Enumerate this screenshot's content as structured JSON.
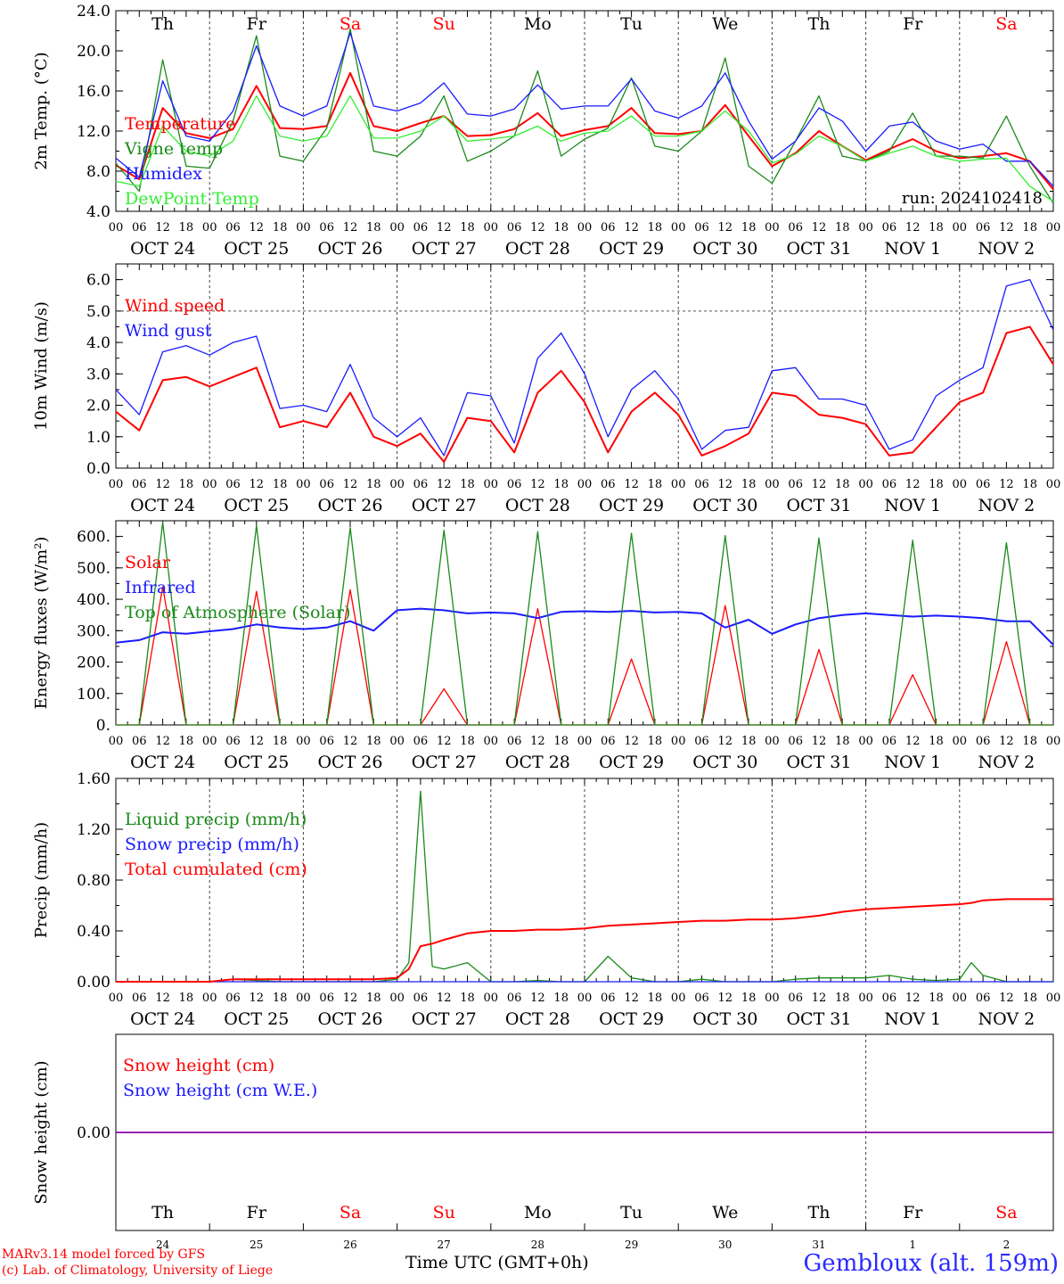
{
  "run_label": "run: 2024102418",
  "days": [
    "Th",
    "Fr",
    "Sa",
    "Su",
    "Mo",
    "Tu",
    "We",
    "Th",
    "Fr",
    "Sa"
  ],
  "weekend": [
    false,
    false,
    true,
    true,
    false,
    false,
    false,
    false,
    false,
    true
  ],
  "dates": [
    "OCT 24",
    "OCT 25",
    "OCT 26",
    "OCT 27",
    "OCT 28",
    "OCT 29",
    "OCT 30",
    "OCT 31",
    "NOV  1",
    "NOV  2"
  ],
  "bottom_dates": [
    "24",
    "25",
    "26",
    "27",
    "28",
    "29",
    "30",
    "31",
    "1",
    "2"
  ],
  "hour_labels": [
    "00",
    "06",
    "12",
    "18"
  ],
  "footer": {
    "model": "MARv3.14 model forced by GFS",
    "lab": "(c) Lab. of Climatology, University of Liege",
    "axis": "Time UTC (GMT+0h)",
    "station": "Gembloux (alt. 159m)"
  },
  "colors": {
    "red": "#ff0000",
    "green": "#1a8a1a",
    "blue": "#1a1aff",
    "lightgreen": "#33ee33",
    "purple": "#8800aa"
  },
  "chart_data": [
    {
      "type": "line",
      "ylabel": "2m Temp. (°C)",
      "ylim": [
        4,
        24
      ],
      "yticks": [
        "4.0",
        "8.0",
        "12.0",
        "16.0",
        "20.0",
        "24.0"
      ],
      "x_hours": [
        0,
        6,
        12,
        18,
        24,
        30,
        36,
        42,
        48,
        54,
        60,
        66,
        72,
        78,
        84,
        90,
        96,
        102,
        108,
        114,
        120,
        126,
        132,
        138,
        144,
        150,
        156,
        162,
        168,
        174,
        180,
        186,
        192,
        198,
        204,
        210,
        216,
        222,
        228,
        234,
        240
      ],
      "series": [
        {
          "name": "Temperature",
          "color": "red",
          "values": [
            8.6,
            7.2,
            14.3,
            11.8,
            11.3,
            12.2,
            16.5,
            12.3,
            12.2,
            12.5,
            17.8,
            12.5,
            12.0,
            12.8,
            13.5,
            11.5,
            11.6,
            12.2,
            13.8,
            11.5,
            12.1,
            12.5,
            14.3,
            11.8,
            11.7,
            12.0,
            14.6,
            11.5,
            8.5,
            9.8,
            12.0,
            10.5,
            9.1,
            10.2,
            11.2,
            10.0,
            9.3,
            9.5,
            9.8,
            9.0,
            6.2
          ]
        },
        {
          "name": "Vigne temp",
          "color": "green",
          "values": [
            8.8,
            6.0,
            19.1,
            8.5,
            8.3,
            13.0,
            21.5,
            9.5,
            9.0,
            12.3,
            22.2,
            10.0,
            9.5,
            11.5,
            15.5,
            9.0,
            10.0,
            11.5,
            18.0,
            9.5,
            11.2,
            12.3,
            17.3,
            10.5,
            10.0,
            12.0,
            19.3,
            8.5,
            6.8,
            11.0,
            15.5,
            9.5,
            9.0,
            10.0,
            13.8,
            9.5,
            9.5,
            9.3,
            13.5,
            8.5,
            4.8
          ]
        },
        {
          "name": "Humidex",
          "color": "blue",
          "values": [
            9.3,
            7.4,
            17.0,
            11.5,
            11.0,
            14.0,
            20.5,
            14.5,
            13.5,
            14.5,
            21.8,
            14.5,
            14.0,
            14.8,
            16.8,
            13.7,
            13.5,
            14.2,
            16.6,
            14.2,
            14.5,
            14.5,
            17.2,
            14.0,
            13.3,
            14.5,
            17.8,
            13.0,
            9.2,
            11.0,
            14.3,
            13.0,
            10.0,
            12.5,
            12.9,
            11.0,
            10.2,
            10.7,
            9.0,
            9.0,
            6.5
          ]
        },
        {
          "name": "DewPoint Temp",
          "color": "lightgreen",
          "values": [
            7.0,
            6.5,
            12.5,
            10.0,
            9.5,
            11.0,
            15.5,
            11.5,
            11.0,
            11.5,
            15.5,
            11.3,
            11.3,
            12.0,
            13.5,
            11.0,
            11.2,
            11.5,
            12.5,
            11.0,
            11.8,
            12.0,
            13.5,
            11.5,
            11.5,
            12.0,
            14.0,
            12.0,
            8.8,
            9.7,
            11.5,
            10.5,
            9.0,
            9.8,
            10.5,
            9.5,
            9.0,
            9.2,
            9.3,
            6.5,
            5.0
          ]
        }
      ]
    },
    {
      "type": "line",
      "ylabel": "10m Wind (m/s)",
      "ylim": [
        0,
        6.5
      ],
      "yticks": [
        "0.0",
        "1.0",
        "2.0",
        "3.0",
        "4.0",
        "5.0",
        "6.0"
      ],
      "ref_line": 5,
      "x_hours": [
        0,
        6,
        12,
        18,
        24,
        30,
        36,
        42,
        48,
        54,
        60,
        66,
        72,
        78,
        84,
        90,
        96,
        102,
        108,
        114,
        120,
        126,
        132,
        138,
        144,
        150,
        156,
        162,
        168,
        174,
        180,
        186,
        192,
        198,
        204,
        210,
        216,
        222,
        228,
        234,
        240
      ],
      "series": [
        {
          "name": "Wind speed",
          "color": "red",
          "values": [
            1.8,
            1.2,
            2.8,
            2.9,
            2.6,
            2.9,
            3.2,
            1.3,
            1.5,
            1.3,
            2.4,
            1.0,
            0.7,
            1.1,
            0.2,
            1.6,
            1.5,
            0.5,
            2.4,
            3.1,
            2.1,
            0.5,
            1.8,
            2.4,
            1.7,
            0.4,
            0.7,
            1.1,
            2.4,
            2.3,
            1.7,
            1.6,
            1.4,
            0.4,
            0.5,
            1.3,
            2.1,
            2.4,
            4.3,
            4.5,
            3.3
          ]
        },
        {
          "name": "Wind gust",
          "color": "blue",
          "values": [
            2.5,
            1.7,
            3.7,
            3.9,
            3.6,
            4.0,
            4.2,
            1.9,
            2.0,
            1.8,
            3.3,
            1.6,
            1.0,
            1.6,
            0.4,
            2.4,
            2.3,
            0.8,
            3.5,
            4.3,
            3.0,
            1.0,
            2.5,
            3.1,
            2.2,
            0.6,
            1.2,
            1.3,
            3.1,
            3.2,
            2.2,
            2.2,
            2.0,
            0.6,
            0.9,
            2.3,
            2.8,
            3.2,
            5.8,
            6.0,
            4.4
          ]
        }
      ]
    },
    {
      "type": "line",
      "ylabel": "Energy fluxes (W/m²)",
      "ylim": [
        0,
        650
      ],
      "yticks": [
        "0.",
        "100.",
        "200.",
        "300.",
        "400.",
        "500.",
        "600."
      ],
      "x_hours": [
        0,
        6,
        12,
        18,
        24,
        30,
        36,
        42,
        48,
        54,
        60,
        66,
        72,
        78,
        84,
        90,
        96,
        102,
        108,
        114,
        120,
        126,
        132,
        138,
        144,
        150,
        156,
        162,
        168,
        174,
        180,
        186,
        192,
        198,
        204,
        210,
        216,
        222,
        228,
        234,
        240
      ],
      "series": [
        {
          "name": "Solar",
          "color": "red",
          "values": [
            0,
            0,
            440,
            0,
            0,
            0,
            425,
            0,
            0,
            0,
            430,
            0,
            0,
            0,
            115,
            0,
            0,
            0,
            370,
            0,
            0,
            0,
            210,
            0,
            0,
            0,
            380,
            0,
            0,
            0,
            240,
            0,
            0,
            0,
            160,
            0,
            0,
            0,
            265,
            0,
            0
          ]
        },
        {
          "name": "Infrared",
          "color": "blue",
          "values": [
            262,
            270,
            295,
            290,
            298,
            305,
            320,
            310,
            305,
            310,
            330,
            300,
            365,
            370,
            365,
            355,
            358,
            355,
            340,
            360,
            362,
            360,
            363,
            358,
            360,
            355,
            310,
            335,
            290,
            320,
            340,
            350,
            355,
            350,
            345,
            348,
            345,
            340,
            330,
            330,
            255
          ]
        },
        {
          "name": "Top of Atmosphere (Solar)",
          "color": "green",
          "values": [
            0,
            0,
            645,
            0,
            0,
            0,
            635,
            0,
            0,
            0,
            628,
            0,
            0,
            0,
            620,
            0,
            0,
            0,
            615,
            0,
            0,
            0,
            610,
            0,
            0,
            0,
            603,
            0,
            0,
            0,
            595,
            0,
            0,
            0,
            588,
            0,
            0,
            0,
            580,
            0,
            0
          ]
        }
      ]
    },
    {
      "type": "line",
      "ylabel": "Precip (mm/h)",
      "ylim": [
        0,
        1.6
      ],
      "yticks": [
        "0.00",
        "0.40",
        "0.80",
        "1.20",
        "1.60"
      ],
      "x_hours": [
        0,
        6,
        12,
        18,
        24,
        30,
        36,
        42,
        48,
        54,
        60,
        66,
        72,
        75,
        78,
        81,
        84,
        90,
        96,
        102,
        108,
        114,
        120,
        126,
        132,
        138,
        144,
        150,
        156,
        162,
        168,
        174,
        180,
        186,
        192,
        198,
        204,
        210,
        216,
        219,
        222,
        228,
        234,
        240
      ],
      "series": [
        {
          "name": "Liquid precip (mm/h)",
          "color": "green",
          "values": [
            0,
            0,
            0,
            0,
            0,
            0.02,
            0.01,
            0,
            0,
            0,
            0,
            0,
            0.02,
            0.15,
            1.5,
            0.12,
            0.1,
            0.15,
            0,
            0,
            0.01,
            0,
            0,
            0.2,
            0.03,
            0,
            0,
            0.02,
            0,
            0,
            0,
            0.02,
            0.03,
            0.03,
            0.03,
            0.05,
            0.02,
            0.01,
            0.02,
            0.15,
            0.05,
            0,
            0,
            0
          ]
        },
        {
          "name": "Snow precip (mm/h)",
          "color": "blue",
          "values": [
            0,
            0,
            0,
            0,
            0,
            0,
            0,
            0,
            0,
            0,
            0,
            0,
            0,
            0,
            0,
            0,
            0,
            0,
            0,
            0,
            0,
            0,
            0,
            0,
            0,
            0,
            0,
            0,
            0,
            0,
            0,
            0,
            0,
            0,
            0,
            0,
            0,
            0,
            0,
            0,
            0,
            0,
            0,
            0
          ]
        },
        {
          "name": "Total cumulated (cm)",
          "color": "red",
          "values": [
            0,
            0,
            0,
            0,
            0,
            0.02,
            0.02,
            0.02,
            0.02,
            0.02,
            0.02,
            0.02,
            0.03,
            0.1,
            0.28,
            0.3,
            0.33,
            0.38,
            0.4,
            0.4,
            0.41,
            0.41,
            0.42,
            0.44,
            0.45,
            0.46,
            0.47,
            0.48,
            0.48,
            0.49,
            0.49,
            0.5,
            0.52,
            0.55,
            0.57,
            0.58,
            0.59,
            0.6,
            0.61,
            0.62,
            0.64,
            0.65,
            0.65,
            0.65
          ]
        }
      ]
    },
    {
      "type": "line",
      "ylabel": "Snow height (cm)",
      "ylim": [
        -1,
        1
      ],
      "yticks": [
        "0.00"
      ],
      "x_hours": [
        0,
        240
      ],
      "series": [
        {
          "name": "Snow height (cm)",
          "color": "red",
          "values": [
            0,
            0
          ]
        },
        {
          "name": "Snow height (cm W.E.)",
          "color": "blue",
          "values": [
            0,
            0
          ]
        }
      ]
    }
  ]
}
